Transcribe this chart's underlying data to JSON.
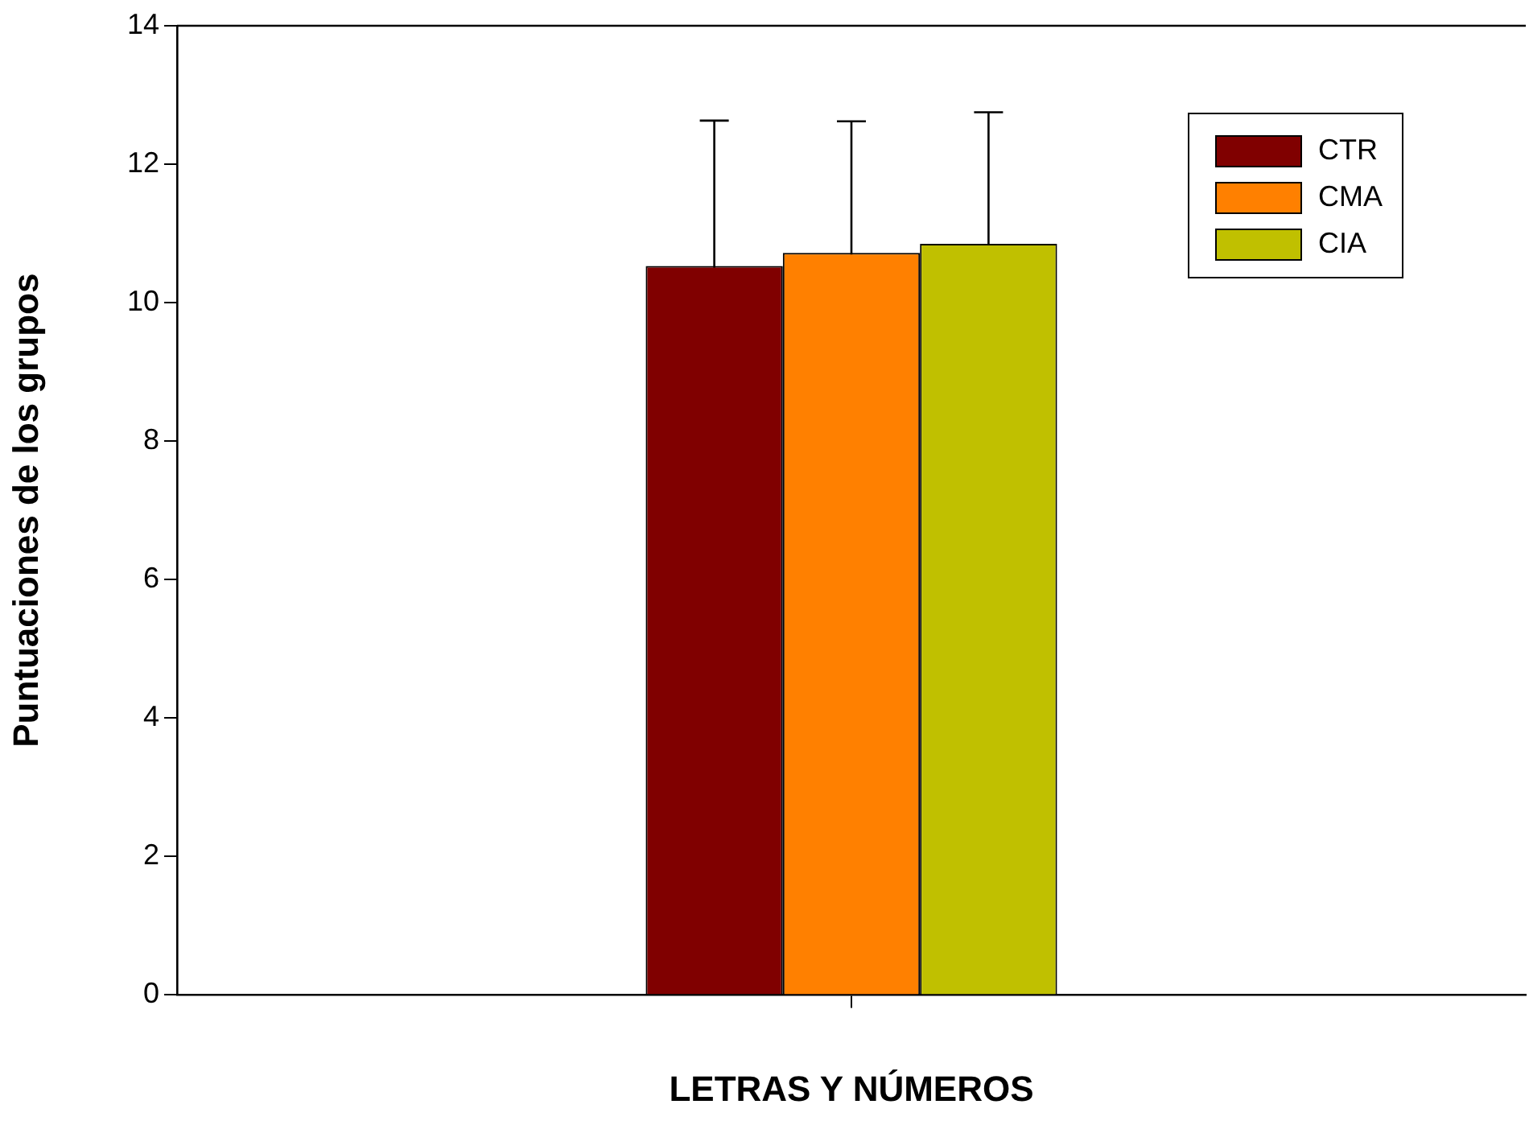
{
  "chart_data": {
    "type": "bar",
    "xlabel": "LETRAS Y NÚMEROS",
    "ylabel": "Puntuaciones de los grupos",
    "categories": [
      null
    ],
    "series": [
      {
        "name": "CTR",
        "color": "#800000",
        "values": [
          10.53
        ],
        "errors": [
          2.1
        ]
      },
      {
        "name": "CMA",
        "color": "#ff8000",
        "values": [
          10.72
        ],
        "errors": [
          1.9
        ]
      },
      {
        "name": "CIA",
        "color": "#c0c000",
        "values": [
          10.85
        ],
        "errors": [
          1.9
        ]
      }
    ],
    "ylim": [
      0,
      14
    ],
    "yticks": [
      0,
      2,
      4,
      6,
      8,
      10,
      12,
      14
    ],
    "grid": false,
    "legend": "top right"
  }
}
